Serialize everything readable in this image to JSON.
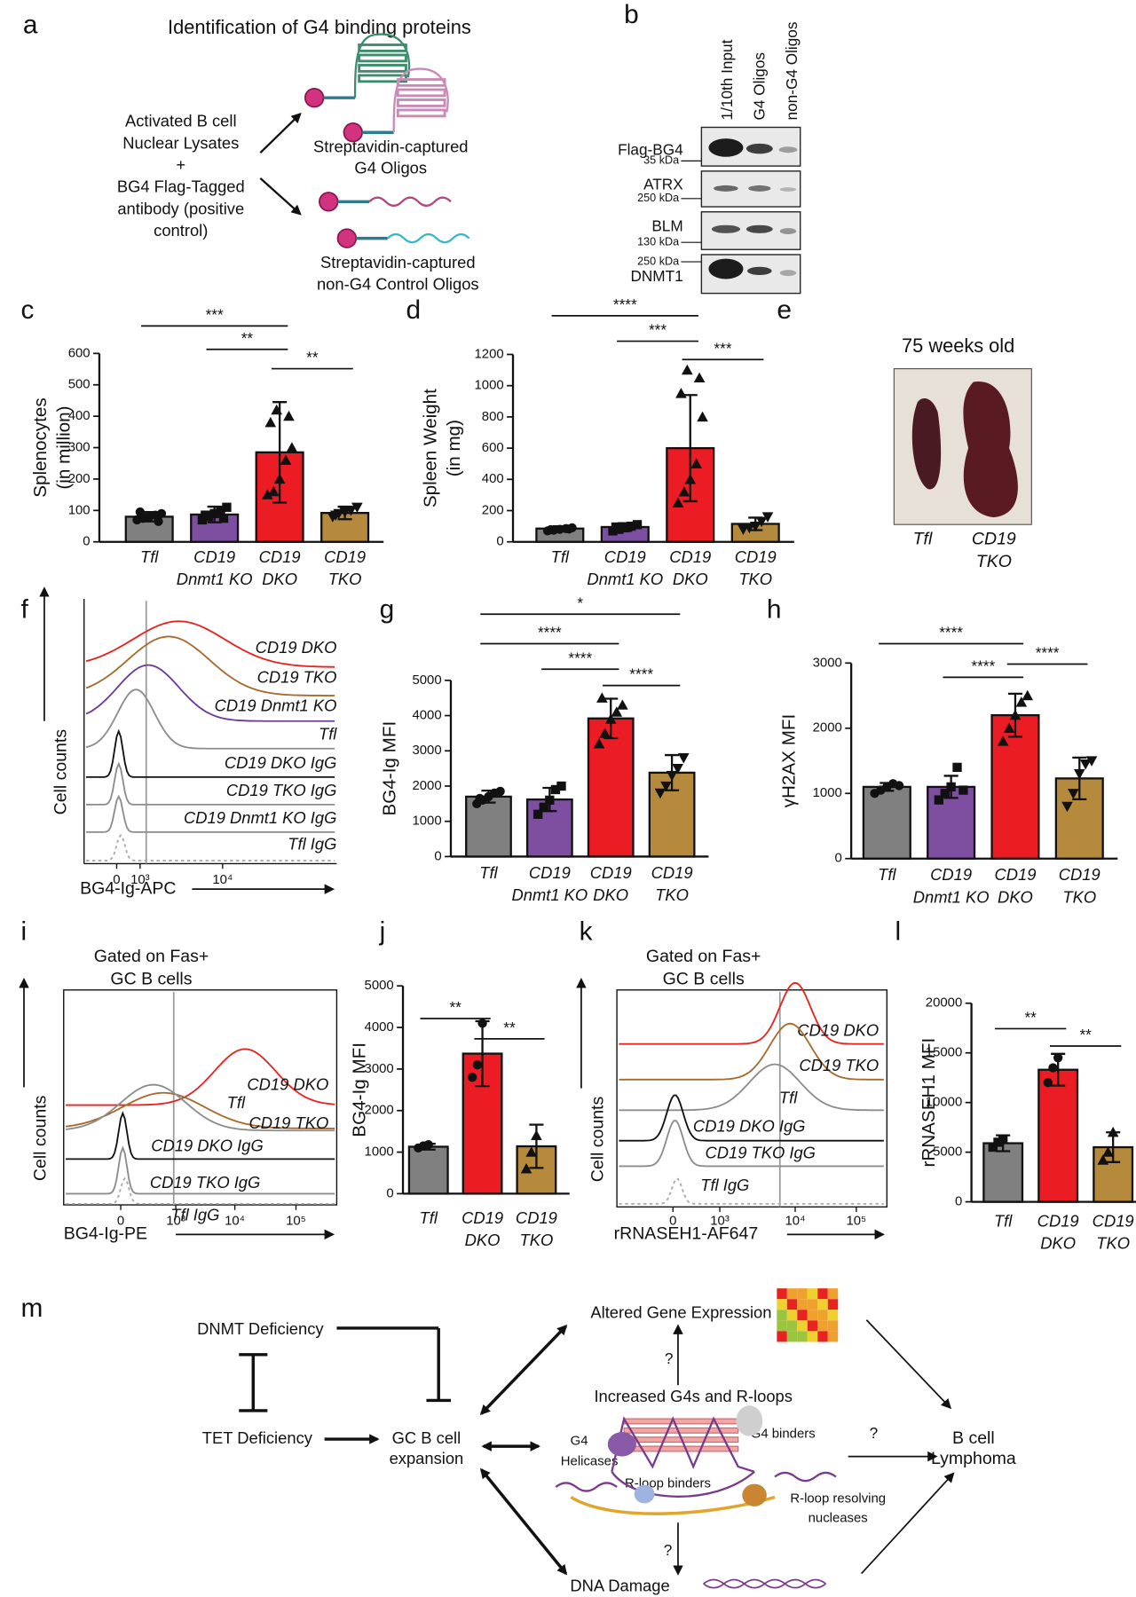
{
  "panel_labels": [
    "a",
    "b",
    "c",
    "d",
    "e",
    "f",
    "g",
    "h",
    "i",
    "j",
    "k",
    "l",
    "m"
  ],
  "panel_a": {
    "title": "Identification of G4 binding proteins",
    "input": [
      "Activated B cell",
      "Nuclear Lysates",
      "+",
      "BG4 Flag-Tagged",
      "antibody (positive",
      "control)"
    ],
    "g4": [
      "Streptavidin-captured",
      "G4 Oligos"
    ],
    "control": [
      "Streptavidin-captured",
      "non-G4 Control Oligos"
    ]
  },
  "panel_b": {
    "lanes": [
      "1/10th Input",
      "G4 Oligos",
      "non-G4 Oligos"
    ],
    "blots": [
      {
        "name": "Flag-BG4",
        "marker": "35 kDa"
      },
      {
        "name": "ATRX",
        "marker": "250 kDa"
      },
      {
        "name": "BLM",
        "marker": "130 kDa"
      },
      {
        "name": "DNMT1",
        "marker": "250 kDa"
      }
    ]
  },
  "panel_e": {
    "title": "75 weeks old",
    "labels": [
      [
        "Tfl"
      ],
      [
        "CD19",
        "TKO"
      ]
    ]
  },
  "chart_data": [
    {
      "type": "bar",
      "ylabel": [
        "Splenocytes",
        "(in million)"
      ],
      "categories": [
        [
          "Tfl"
        ],
        [
          "CD19",
          "Dnmt1 KO"
        ],
        [
          "CD19",
          "DKO"
        ],
        [
          "CD19",
          "TKO"
        ]
      ],
      "values": [
        80,
        87,
        285,
        92
      ],
      "errors": [
        15,
        25,
        160,
        20
      ],
      "points": [
        [
          70,
          75,
          80,
          85,
          90,
          95,
          65,
          78
        ],
        [
          70,
          80,
          90,
          100,
          110,
          85,
          75
        ],
        [
          150,
          160,
          200,
          260,
          300,
          380,
          400,
          420
        ],
        [
          80,
          90,
          95,
          100,
          110,
          85
        ]
      ],
      "colors": [
        "#808080",
        "#7e4fa0",
        "#ec1c24",
        "#b58a3c"
      ],
      "markers": [
        "circle",
        "square",
        "triangle",
        "triangle-down"
      ],
      "ylim": [
        0,
        600
      ],
      "yticks": [
        0,
        100,
        200,
        300,
        400,
        500,
        600
      ],
      "significance": [
        {
          "label": "***",
          "from": 0,
          "to": 2
        },
        {
          "label": "**",
          "from": 1,
          "to": 2
        },
        {
          "label": "**",
          "from": 2,
          "to": 3
        }
      ]
    },
    {
      "type": "bar",
      "ylabel": [
        "Spleen Weight",
        "(in mg)"
      ],
      "categories": [
        [
          "Tfl"
        ],
        [
          "CD19",
          "Dnmt1 KO"
        ],
        [
          "CD19",
          "DKO"
        ],
        [
          "CD19",
          "TKO"
        ]
      ],
      "values": [
        85,
        95,
        600,
        115
      ],
      "errors": [
        15,
        25,
        340,
        40
      ],
      "points": [
        [
          70,
          75,
          80,
          85,
          90,
          78,
          82
        ],
        [
          70,
          80,
          90,
          100,
          110,
          95
        ],
        [
          250,
          320,
          400,
          500,
          800,
          950,
          1050,
          1100
        ],
        [
          80,
          90,
          100,
          130,
          160
        ]
      ],
      "colors": [
        "#808080",
        "#7e4fa0",
        "#ec1c24",
        "#b58a3c"
      ],
      "markers": [
        "circle",
        "square",
        "triangle",
        "triangle-down"
      ],
      "ylim": [
        0,
        1200
      ],
      "yticks": [
        0,
        200,
        400,
        600,
        800,
        1000,
        1200
      ],
      "significance": [
        {
          "label": "****",
          "from": 0,
          "to": 2
        },
        {
          "label": "***",
          "from": 1,
          "to": 2
        },
        {
          "label": "***",
          "from": 2,
          "to": 3
        }
      ]
    },
    {
      "type": "bar",
      "ylabel": [
        "BG4-Ig MFI"
      ],
      "categories": [
        [
          "Tfl"
        ],
        [
          "CD19",
          "Dnmt1 KO"
        ],
        [
          "CD19",
          "DKO"
        ],
        [
          "CD19",
          "TKO"
        ]
      ],
      "values": [
        1700,
        1620,
        3920,
        2380
      ],
      "errors": [
        170,
        330,
        560,
        500
      ],
      "points": [
        [
          1500,
          1600,
          1700,
          1800,
          1850,
          1650
        ],
        [
          1200,
          1400,
          1600,
          1900,
          2000
        ],
        [
          3200,
          3500,
          3900,
          4100,
          4300,
          4500
        ],
        [
          1800,
          2000,
          2300,
          2500,
          2800
        ]
      ],
      "colors": [
        "#808080",
        "#7e4fa0",
        "#ec1c24",
        "#b58a3c"
      ],
      "markers": [
        "circle",
        "square",
        "triangle",
        "triangle-down"
      ],
      "ylim": [
        0,
        5000
      ],
      "yticks": [
        0,
        1000,
        2000,
        3000,
        4000,
        5000
      ],
      "significance": [
        {
          "label": "*",
          "from": 0,
          "to": 3
        },
        {
          "label": "****",
          "from": 0,
          "to": 2
        },
        {
          "label": "****",
          "from": 1,
          "to": 2
        },
        {
          "label": "****",
          "from": 2,
          "to": 3
        }
      ]
    },
    {
      "type": "bar",
      "ylabel": [
        "γH2AX MFI"
      ],
      "categories": [
        [
          "Tfl"
        ],
        [
          "CD19",
          "Dnmt1 KO"
        ],
        [
          "CD19",
          "DKO"
        ],
        [
          "CD19",
          "TKO"
        ]
      ],
      "values": [
        1100,
        1100,
        2200,
        1230
      ],
      "errors": [
        60,
        170,
        330,
        320
      ],
      "points": [
        [
          1000,
          1050,
          1100,
          1150,
          1120
        ],
        [
          900,
          1000,
          1100,
          1400,
          1050
        ],
        [
          1800,
          2000,
          2200,
          2400,
          2500
        ],
        [
          800,
          1000,
          1300,
          1450,
          1500
        ]
      ],
      "colors": [
        "#808080",
        "#7e4fa0",
        "#ec1c24",
        "#b58a3c"
      ],
      "markers": [
        "circle",
        "square",
        "triangle",
        "triangle-down"
      ],
      "ylim": [
        0,
        3000
      ],
      "yticks": [
        0,
        1000,
        2000,
        3000
      ],
      "significance": [
        {
          "label": "****",
          "from": 0,
          "to": 2
        },
        {
          "label": "****",
          "from": 1,
          "to": 2
        },
        {
          "label": "****",
          "from": 2,
          "to": 3
        }
      ]
    },
    {
      "type": "bar",
      "ylabel": [
        "BG4-Ig MFI"
      ],
      "categories": [
        [
          "Tfl"
        ],
        [
          "CD19",
          "DKO"
        ],
        [
          "CD19",
          "TKO"
        ]
      ],
      "values": [
        1130,
        3370,
        1140
      ],
      "errors": [
        70,
        780,
        520
      ],
      "points": [
        [
          1100,
          1150,
          1180
        ],
        [
          2800,
          3100,
          4100
        ],
        [
          600,
          1000,
          1400
        ]
      ],
      "colors": [
        "#808080",
        "#ec1c24",
        "#b58a3c"
      ],
      "markers": [
        "circle",
        "circle",
        "triangle"
      ],
      "ylim": [
        0,
        5000
      ],
      "yticks": [
        0,
        1000,
        2000,
        3000,
        4000,
        5000
      ],
      "significance": [
        {
          "label": "**",
          "from": 0,
          "to": 1
        },
        {
          "label": "**",
          "from": 1,
          "to": 2
        }
      ]
    },
    {
      "type": "bar",
      "ylabel": [
        "rRNASEH1 MFI"
      ],
      "categories": [
        [
          "Tfl"
        ],
        [
          "CD19",
          "DKO"
        ],
        [
          "CD19",
          "TKO"
        ]
      ],
      "values": [
        5900,
        13300,
        5500
      ],
      "errors": [
        800,
        1600,
        1500
      ],
      "points": [
        [
          5500,
          6000,
          6300
        ],
        [
          12000,
          13500,
          14500
        ],
        [
          4200,
          5000,
          7000
        ]
      ],
      "colors": [
        "#808080",
        "#ec1c24",
        "#b58a3c"
      ],
      "markers": [
        "square",
        "circle",
        "triangle"
      ],
      "ylim": [
        0,
        20000
      ],
      "yticks": [
        0,
        5000,
        10000,
        15000,
        20000
      ],
      "significance": [
        {
          "label": "**",
          "from": 0,
          "to": 1
        },
        {
          "label": "**",
          "from": 1,
          "to": 2
        }
      ]
    }
  ],
  "flow_panels": [
    {
      "ylabel": "Cell counts",
      "xlabel": "BG4-Ig-APC",
      "xticks": [
        "0",
        "10³",
        "10⁴"
      ],
      "curves": [
        {
          "name": "CD19 DKO",
          "color": "#e8231f"
        },
        {
          "name": "CD19 TKO",
          "color": "#a8692c"
        },
        {
          "name": "CD19 Dnmt1 KO",
          "color": "#6d3a9c"
        },
        {
          "name": "Tfl",
          "color": "#8c8c8c"
        },
        {
          "name": "CD19 DKO IgG",
          "color": "#111111"
        },
        {
          "name": "CD19 TKO IgG",
          "color": "#8c8c8c"
        },
        {
          "name": "CD19 Dnmt1 KO IgG",
          "color": "#8c8c8c"
        },
        {
          "name": "Tfl IgG",
          "color": "#aaaaaa"
        }
      ]
    },
    {
      "title": [
        "Gated on Fas+",
        "GC B cells"
      ],
      "ylabel": "Cell counts",
      "xlabel": "BG4-Ig-PE",
      "xticks": [
        "0",
        "10³",
        "10⁴",
        "10⁵"
      ],
      "curves": [
        {
          "name": "CD19 DKO",
          "color": "#e8231f"
        },
        {
          "name": "CD19 TKO",
          "color": "#a8692c"
        },
        {
          "name": "Tfl",
          "color": "#8c8c8c"
        },
        {
          "name": "CD19 DKO IgG",
          "color": "#111111"
        },
        {
          "name": "CD19 TKO IgG",
          "color": "#8c8c8c"
        },
        {
          "name": "Tfl IgG",
          "color": "#aaaaaa"
        }
      ]
    },
    {
      "title": [
        "Gated on Fas+",
        "GC B cells"
      ],
      "ylabel": "Cell counts",
      "xlabel": "rRNASEH1-AF647",
      "xticks": [
        "0",
        "10³",
        "10⁴",
        "10⁵"
      ],
      "curves": [
        {
          "name": "CD19 DKO",
          "color": "#e8231f"
        },
        {
          "name": "CD19 TKO",
          "color": "#a8692c"
        },
        {
          "name": "Tfl",
          "color": "#8c8c8c"
        },
        {
          "name": "CD19 DKO IgG",
          "color": "#111111"
        },
        {
          "name": "CD19 TKO IgG",
          "color": "#8c8c8c"
        },
        {
          "name": "Tfl IgG",
          "color": "#aaaaaa"
        }
      ]
    }
  ],
  "panel_m": {
    "dnmt": "DNMT Deficiency",
    "tet": "TET Deficiency",
    "gc": [
      "GC B cell",
      "expansion"
    ],
    "gene": "Altered Gene Expression",
    "g4": "Increased G4s and R-loops",
    "damage": "DNA Damage",
    "lymphoma": [
      "B cell",
      "Lymphoma"
    ],
    "helicases": [
      "G4",
      "Helicases"
    ],
    "g4_binders": "G4 binders",
    "rloop_binders": "R-loop binders",
    "nucleases": [
      "R-loop resolving",
      "nucleases"
    ],
    "unknown": [
      "?",
      "?",
      "?"
    ]
  }
}
